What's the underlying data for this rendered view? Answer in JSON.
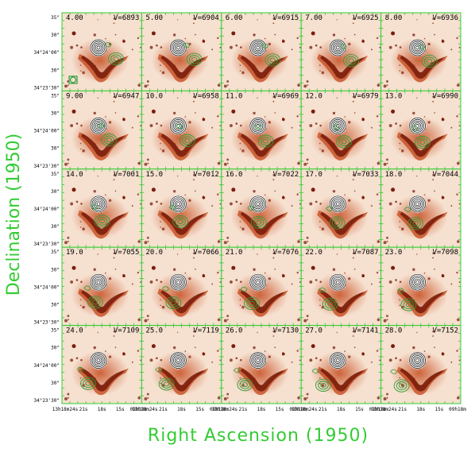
{
  "chart_data": {
    "type": "channel_map",
    "xlabel": "Right Ascension (1950)",
    "ylabel": "Declination (1950)",
    "grid": false,
    "panel_layout": {
      "rows": 5,
      "cols": 5
    },
    "panels": [
      {
        "channel": "4.00",
        "velocity": "V=6893"
      },
      {
        "channel": "5.00",
        "velocity": "V=6904"
      },
      {
        "channel": "6.00",
        "velocity": "V=6915"
      },
      {
        "channel": "7.00",
        "velocity": "V=6925"
      },
      {
        "channel": "8.00",
        "velocity": "V=6936"
      },
      {
        "channel": "9.00",
        "velocity": "V=6947"
      },
      {
        "channel": "10.0",
        "velocity": "V=6958"
      },
      {
        "channel": "11.0",
        "velocity": "V=6969"
      },
      {
        "channel": "12.0",
        "velocity": "V=6979"
      },
      {
        "channel": "13.0",
        "velocity": "V=6990"
      },
      {
        "channel": "14.0",
        "velocity": "V=7001"
      },
      {
        "channel": "15.0",
        "velocity": "V=7012"
      },
      {
        "channel": "16.0",
        "velocity": "V=7022"
      },
      {
        "channel": "17.0",
        "velocity": "V=7033"
      },
      {
        "channel": "18.0",
        "velocity": "V=7044"
      },
      {
        "channel": "19.0",
        "velocity": "V=7055"
      },
      {
        "channel": "20.0",
        "velocity": "V=7066"
      },
      {
        "channel": "21.0",
        "velocity": "V=7076"
      },
      {
        "channel": "22.0",
        "velocity": "V=7087"
      },
      {
        "channel": "23.0",
        "velocity": "V=7098"
      },
      {
        "channel": "24.0",
        "velocity": "V=7109"
      },
      {
        "channel": "25.0",
        "velocity": "V=7119"
      },
      {
        "channel": "26.0",
        "velocity": "V=7130"
      },
      {
        "channel": "27.0",
        "velocity": "V=7141"
      },
      {
        "channel": "28.0",
        "velocity": "V=7152"
      }
    ],
    "row_ticks": [
      "35\"",
      "30\"",
      "34°24'00\"",
      "30\"",
      "34°23'30\""
    ],
    "x_ticks": [
      "13h18m24s",
      "21s",
      "18s",
      "15s",
      "09h18m"
    ],
    "colors": {
      "axis": "#33cc33",
      "contour": "#2e9e3a",
      "background": "#f6e0cf",
      "galaxy": "#7a1e0c",
      "galaxy_mid": "#c8552a",
      "center": "#ffffff"
    }
  }
}
